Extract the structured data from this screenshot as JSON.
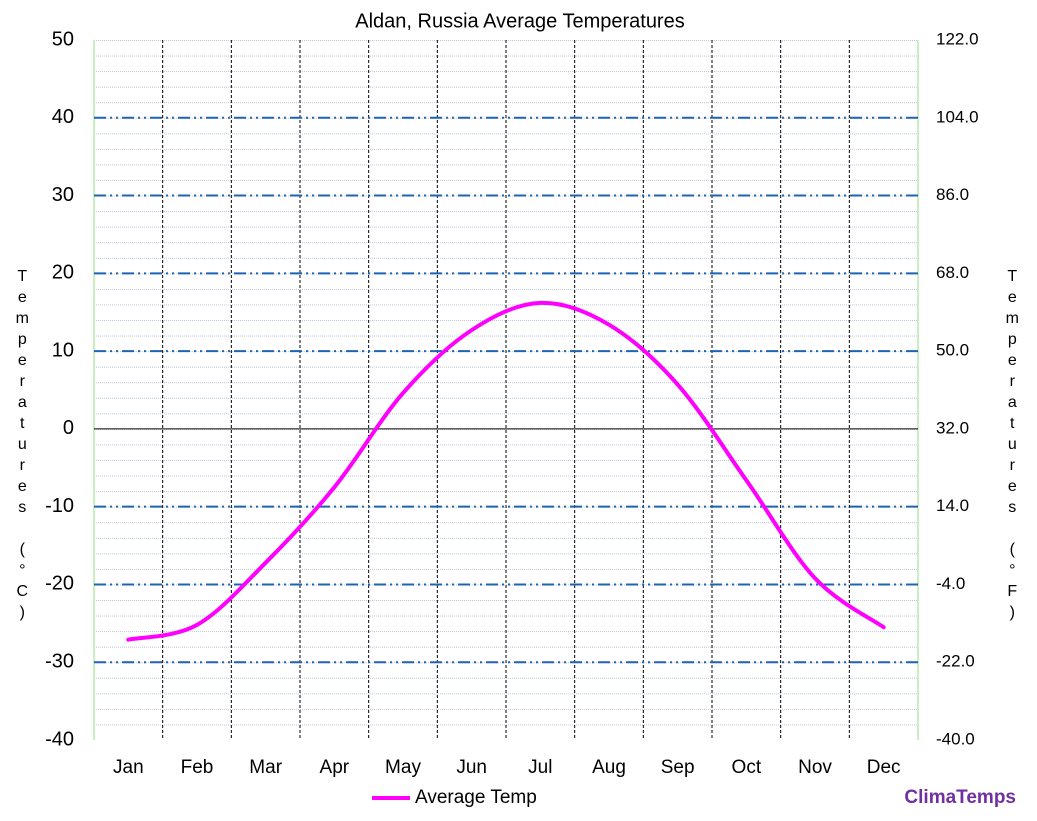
{
  "chart_data": {
    "type": "line",
    "title": "Aldan, Russia Average Temperatures",
    "y_label": "Temperatures (°C)",
    "y2_label": "Temperatures (°F)",
    "categories": [
      "Jan",
      "Feb",
      "Mar",
      "Apr",
      "May",
      "Jun",
      "Jul",
      "Aug",
      "Sep",
      "Oct",
      "Nov",
      "Dec"
    ],
    "series": [
      {
        "name": "Average Temp",
        "color": "#ff00ff",
        "values": [
          -27.1,
          -25.2,
          -17.2,
          -7.5,
          4.6,
          12.7,
          16.2,
          13.4,
          5.7,
          -6.6,
          -19.2,
          -25.5
        ]
      }
    ],
    "ylim": [
      -40,
      50
    ],
    "yticks": [
      -40,
      -30,
      -20,
      -10,
      0,
      10,
      20,
      30,
      40,
      50
    ],
    "y2lim": [
      -40,
      122
    ],
    "y2ticks": [
      {
        "value": -40,
        "label": "-40.0"
      },
      {
        "value": -22,
        "label": "-22.0"
      },
      {
        "value": -4,
        "label": "-4.0"
      },
      {
        "value": 14,
        "label": "14.0"
      },
      {
        "value": 32,
        "label": "32.0"
      },
      {
        "value": 50,
        "label": "50.0"
      },
      {
        "value": 68,
        "label": "68.0"
      },
      {
        "value": 86,
        "label": "86.0"
      },
      {
        "value": 104,
        "label": "104.0"
      },
      {
        "value": 122,
        "label": "122.0"
      }
    ],
    "grid": true,
    "legend": "bottom",
    "source": "ClimaTemps"
  }
}
